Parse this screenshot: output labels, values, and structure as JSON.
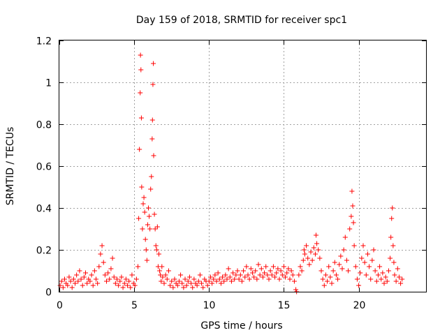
{
  "chart_data": {
    "type": "scatter",
    "title": "Day 159 of 2018, SRMTID for receiver spc1",
    "xlabel": "GPS time / hours",
    "ylabel": "SRMTID / TECUs",
    "xlim": [
      0,
      24.5
    ],
    "ylim": [
      0,
      1.2
    ],
    "xticks": [
      0,
      5,
      10,
      15,
      20
    ],
    "xtick_labels": [
      "0",
      "5",
      "10",
      "15",
      "20"
    ],
    "yticks": [
      0,
      0.2,
      0.4,
      0.6,
      0.8,
      1,
      1.2
    ],
    "ytick_labels": [
      "0",
      "0.2",
      "0.4",
      "0.6",
      "0.8",
      "1",
      "1.2"
    ],
    "grid": true,
    "marker": "plus",
    "color": "#ff0000",
    "series": [
      {
        "name": "srmtid",
        "points": [
          [
            0.05,
            0.03
          ],
          [
            0.15,
            0.05
          ],
          [
            0.25,
            0.02
          ],
          [
            0.35,
            0.06
          ],
          [
            0.45,
            0.04
          ],
          [
            0.55,
            0.03
          ],
          [
            0.65,
            0.07
          ],
          [
            0.75,
            0.05
          ],
          [
            0.85,
            0.02
          ],
          [
            0.95,
            0.06
          ],
          [
            1.05,
            0.04
          ],
          [
            1.15,
            0.08
          ],
          [
            1.25,
            0.05
          ],
          [
            1.35,
            0.1
          ],
          [
            1.45,
            0.06
          ],
          [
            1.55,
            0.03
          ],
          [
            1.65,
            0.07
          ],
          [
            1.75,
            0.09
          ],
          [
            1.85,
            0.04
          ],
          [
            1.95,
            0.06
          ],
          [
            2.05,
            0.05
          ],
          [
            2.15,
            0.08
          ],
          [
            2.25,
            0.03
          ],
          [
            2.35,
            0.1
          ],
          [
            2.45,
            0.06
          ],
          [
            2.55,
            0.04
          ],
          [
            2.65,
            0.12
          ],
          [
            2.75,
            0.18
          ],
          [
            2.85,
            0.22
          ],
          [
            2.95,
            0.14
          ],
          [
            3.05,
            0.08
          ],
          [
            3.15,
            0.05
          ],
          [
            3.25,
            0.09
          ],
          [
            3.35,
            0.06
          ],
          [
            3.45,
            0.11
          ],
          [
            3.55,
            0.16
          ],
          [
            3.65,
            0.07
          ],
          [
            3.75,
            0.04
          ],
          [
            3.85,
            0.06
          ],
          [
            3.95,
            0.03
          ],
          [
            4.05,
            0.05
          ],
          [
            4.15,
            0.07
          ],
          [
            4.25,
            0.02
          ],
          [
            4.35,
            0.04
          ],
          [
            4.45,
            0.06
          ],
          [
            4.55,
            0.03
          ],
          [
            4.65,
            0.05
          ],
          [
            4.75,
            0.02
          ],
          [
            4.85,
            0.08
          ],
          [
            4.95,
            0.04
          ],
          [
            5.05,
            0.03
          ],
          [
            5.15,
            0.06
          ],
          [
            5.25,
            0.12
          ],
          [
            5.3,
            0.35
          ],
          [
            5.35,
            0.68
          ],
          [
            5.4,
            0.95
          ],
          [
            5.42,
            1.13
          ],
          [
            5.45,
            1.06
          ],
          [
            5.48,
            0.83
          ],
          [
            5.5,
            0.5
          ],
          [
            5.55,
            0.3
          ],
          [
            5.6,
            0.42
          ],
          [
            5.65,
            0.45
          ],
          [
            5.7,
            0.38
          ],
          [
            5.75,
            0.25
          ],
          [
            5.8,
            0.2
          ],
          [
            5.85,
            0.15
          ],
          [
            5.9,
            0.32
          ],
          [
            5.95,
            0.4
          ],
          [
            6.0,
            0.36
          ],
          [
            6.05,
            0.3
          ],
          [
            6.1,
            0.49
          ],
          [
            6.15,
            0.55
          ],
          [
            6.2,
            0.73
          ],
          [
            6.22,
            0.82
          ],
          [
            6.25,
            0.99
          ],
          [
            6.28,
            1.09
          ],
          [
            6.3,
            0.65
          ],
          [
            6.35,
            0.37
          ],
          [
            6.4,
            0.3
          ],
          [
            6.45,
            0.22
          ],
          [
            6.5,
            0.2
          ],
          [
            6.55,
            0.31
          ],
          [
            6.6,
            0.12
          ],
          [
            6.65,
            0.18
          ],
          [
            6.7,
            0.1
          ],
          [
            6.75,
            0.08
          ],
          [
            6.8,
            0.05
          ],
          [
            6.85,
            0.12
          ],
          [
            6.9,
            0.07
          ],
          [
            7.0,
            0.04
          ],
          [
            7.1,
            0.08
          ],
          [
            7.2,
            0.06
          ],
          [
            7.3,
            0.1
          ],
          [
            7.4,
            0.03
          ],
          [
            7.5,
            0.05
          ],
          [
            7.6,
            0.02
          ],
          [
            7.7,
            0.06
          ],
          [
            7.8,
            0.04
          ],
          [
            7.9,
            0.03
          ],
          [
            8.0,
            0.05
          ],
          [
            8.1,
            0.08
          ],
          [
            8.2,
            0.04
          ],
          [
            8.3,
            0.02
          ],
          [
            8.4,
            0.06
          ],
          [
            8.5,
            0.03
          ],
          [
            8.6,
            0.05
          ],
          [
            8.7,
            0.07
          ],
          [
            8.8,
            0.04
          ],
          [
            8.9,
            0.02
          ],
          [
            9.0,
            0.06
          ],
          [
            9.1,
            0.04
          ],
          [
            9.2,
            0.03
          ],
          [
            9.3,
            0.05
          ],
          [
            9.4,
            0.08
          ],
          [
            9.5,
            0.04
          ],
          [
            9.6,
            0.02
          ],
          [
            9.7,
            0.06
          ],
          [
            9.8,
            0.05
          ],
          [
            9.9,
            0.03
          ],
          [
            10.0,
            0.05
          ],
          [
            10.1,
            0.07
          ],
          [
            10.2,
            0.04
          ],
          [
            10.3,
            0.06
          ],
          [
            10.4,
            0.08
          ],
          [
            10.5,
            0.05
          ],
          [
            10.6,
            0.09
          ],
          [
            10.7,
            0.06
          ],
          [
            10.8,
            0.04
          ],
          [
            10.9,
            0.07
          ],
          [
            11.0,
            0.05
          ],
          [
            11.1,
            0.08
          ],
          [
            11.2,
            0.06
          ],
          [
            11.3,
            0.11
          ],
          [
            11.4,
            0.07
          ],
          [
            11.5,
            0.05
          ],
          [
            11.6,
            0.09
          ],
          [
            11.7,
            0.06
          ],
          [
            11.8,
            0.08
          ],
          [
            11.9,
            0.1
          ],
          [
            12.0,
            0.06
          ],
          [
            12.1,
            0.08
          ],
          [
            12.2,
            0.05
          ],
          [
            12.3,
            0.1
          ],
          [
            12.4,
            0.07
          ],
          [
            12.5,
            0.12
          ],
          [
            12.6,
            0.08
          ],
          [
            12.7,
            0.06
          ],
          [
            12.8,
            0.11
          ],
          [
            12.9,
            0.09
          ],
          [
            13.0,
            0.07
          ],
          [
            13.1,
            0.1
          ],
          [
            13.2,
            0.06
          ],
          [
            13.3,
            0.13
          ],
          [
            13.4,
            0.08
          ],
          [
            13.5,
            0.11
          ],
          [
            13.6,
            0.07
          ],
          [
            13.7,
            0.09
          ],
          [
            13.8,
            0.12
          ],
          [
            13.9,
            0.08
          ],
          [
            14.0,
            0.06
          ],
          [
            14.1,
            0.1
          ],
          [
            14.2,
            0.08
          ],
          [
            14.3,
            0.12
          ],
          [
            14.4,
            0.07
          ],
          [
            14.5,
            0.09
          ],
          [
            14.6,
            0.11
          ],
          [
            14.7,
            0.06
          ],
          [
            14.8,
            0.1
          ],
          [
            14.9,
            0.08
          ],
          [
            15.0,
            0.12
          ],
          [
            15.1,
            0.07
          ],
          [
            15.2,
            0.09
          ],
          [
            15.3,
            0.11
          ],
          [
            15.4,
            0.06
          ],
          [
            15.5,
            0.1
          ],
          [
            15.6,
            0.08
          ],
          [
            15.7,
            0.05
          ],
          [
            15.8,
            0.01
          ],
          [
            15.85,
            0.0
          ],
          [
            16.0,
            0.08
          ],
          [
            16.1,
            0.12
          ],
          [
            16.2,
            0.1
          ],
          [
            16.3,
            0.15
          ],
          [
            16.35,
            0.2
          ],
          [
            16.4,
            0.18
          ],
          [
            16.5,
            0.22
          ],
          [
            16.6,
            0.16
          ],
          [
            16.7,
            0.13
          ],
          [
            16.8,
            0.19
          ],
          [
            16.9,
            0.15
          ],
          [
            17.0,
            0.21
          ],
          [
            17.1,
            0.18
          ],
          [
            17.15,
            0.27
          ],
          [
            17.2,
            0.23
          ],
          [
            17.3,
            0.2
          ],
          [
            17.4,
            0.16
          ],
          [
            17.5,
            0.1
          ],
          [
            17.6,
            0.06
          ],
          [
            17.7,
            0.03
          ],
          [
            17.8,
            0.08
          ],
          [
            17.9,
            0.05
          ],
          [
            18.0,
            0.12
          ],
          [
            18.1,
            0.07
          ],
          [
            18.2,
            0.04
          ],
          [
            18.3,
            0.1
          ],
          [
            18.4,
            0.14
          ],
          [
            18.5,
            0.08
          ],
          [
            18.6,
            0.06
          ],
          [
            18.7,
            0.13
          ],
          [
            18.8,
            0.17
          ],
          [
            18.9,
            0.11
          ],
          [
            19.0,
            0.2
          ],
          [
            19.1,
            0.26
          ],
          [
            19.2,
            0.15
          ],
          [
            19.3,
            0.1
          ],
          [
            19.4,
            0.3
          ],
          [
            19.5,
            0.36
          ],
          [
            19.55,
            0.48
          ],
          [
            19.6,
            0.41
          ],
          [
            19.65,
            0.33
          ],
          [
            19.7,
            0.22
          ],
          [
            19.8,
            0.12
          ],
          [
            19.9,
            0.06
          ],
          [
            20.0,
            0.03
          ],
          [
            20.1,
            0.09
          ],
          [
            20.2,
            0.16
          ],
          [
            20.3,
            0.22
          ],
          [
            20.4,
            0.14
          ],
          [
            20.5,
            0.08
          ],
          [
            20.6,
            0.18
          ],
          [
            20.7,
            0.12
          ],
          [
            20.8,
            0.06
          ],
          [
            20.9,
            0.15
          ],
          [
            21.0,
            0.2
          ],
          [
            21.1,
            0.1
          ],
          [
            21.2,
            0.05
          ],
          [
            21.3,
            0.08
          ],
          [
            21.4,
            0.12
          ],
          [
            21.5,
            0.06
          ],
          [
            21.6,
            0.09
          ],
          [
            21.7,
            0.04
          ],
          [
            21.8,
            0.07
          ],
          [
            21.9,
            0.05
          ],
          [
            22.0,
            0.1
          ],
          [
            22.1,
            0.16
          ],
          [
            22.15,
            0.26
          ],
          [
            22.2,
            0.35
          ],
          [
            22.25,
            0.4
          ],
          [
            22.3,
            0.22
          ],
          [
            22.35,
            0.14
          ],
          [
            22.4,
            0.08
          ],
          [
            22.5,
            0.05
          ],
          [
            22.6,
            0.11
          ],
          [
            22.7,
            0.07
          ],
          [
            22.8,
            0.04
          ],
          [
            22.9,
            0.06
          ]
        ]
      }
    ]
  }
}
